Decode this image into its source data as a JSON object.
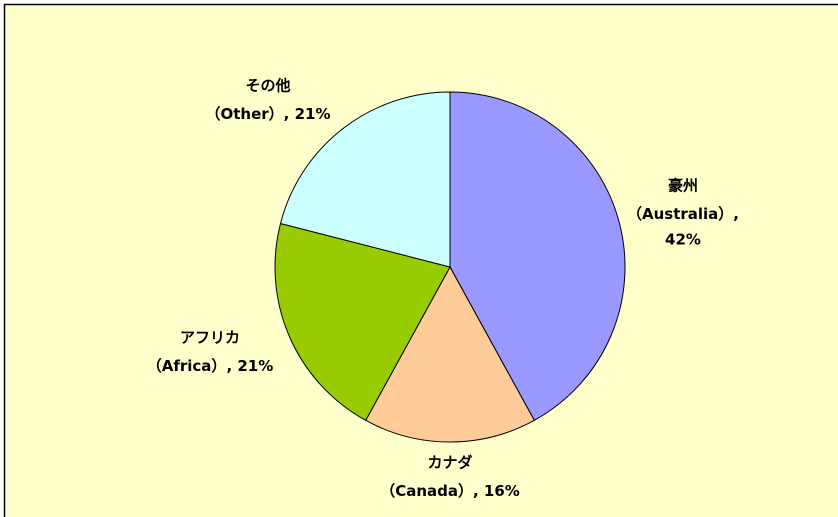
{
  "chart_data": {
    "type": "pie",
    "categories": [
      "豪州",
      "カナダ",
      "アフリカ",
      "その他"
    ],
    "category_notes": [
      "（Australia）",
      "（Canada）",
      "（Africa）",
      "（Other）"
    ],
    "separator": ", ",
    "values": [
      42,
      16,
      21,
      21
    ],
    "value_labels": [
      "42%",
      "16%",
      "21%",
      "21%"
    ],
    "colors": [
      "#9999ff",
      "#ffcc99",
      "#99cc00",
      "#ccffff"
    ],
    "start_angle": 0,
    "direction": "clockwise"
  }
}
